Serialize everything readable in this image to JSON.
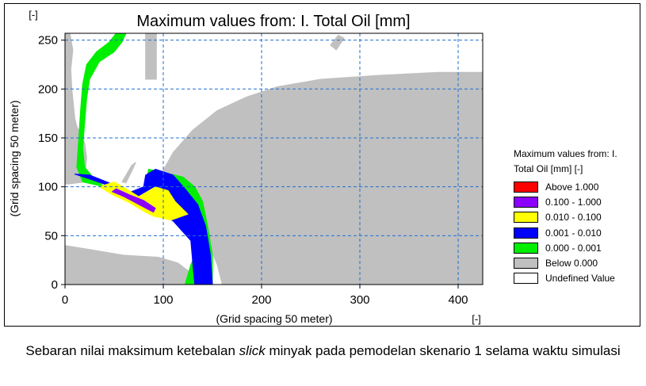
{
  "caption": {
    "before": "Sebaran nilai maksimum ketebalan ",
    "emphasis": "slick",
    "after": " minyak pada pemodelan skenario 1 selama waktu simulasi"
  },
  "chart_data": {
    "type": "heatmap",
    "title": "Maximum values from: I. Total Oil [mm]",
    "xlabel": "(Grid spacing 50 meter)",
    "ylabel": "(Grid spacing 50 meter)",
    "x_unit": "[-]",
    "y_unit": "[-]",
    "xlim": [
      0,
      425
    ],
    "ylim": [
      0,
      257
    ],
    "x_ticks": [
      0,
      100,
      200,
      300,
      400
    ],
    "y_ticks": [
      0,
      50,
      100,
      150,
      200,
      250
    ],
    "grid": true,
    "legend_position": "right",
    "legend": {
      "title_line1": "Maximum values from: I.",
      "title_line2": "Total Oil [mm] [-]",
      "entries": [
        {
          "label": "Above  1.000",
          "color": "#ff0000"
        },
        {
          "label": "0.100 - 1.000",
          "color": "#8b00ff"
        },
        {
          "label": "0.010 - 0.100",
          "color": "#ffff00"
        },
        {
          "label": "0.001 - 0.010",
          "color": "#0000ff"
        },
        {
          "label": "0.000 - 0.001",
          "color": "#00ee00"
        },
        {
          "label": "Below  0.000",
          "color": "#c0c0c0"
        },
        {
          "label": "Undefined Value",
          "color": "#ffffff"
        }
      ]
    },
    "regions": [
      {
        "class": "Below  0.000",
        "color": "#c0c0c0",
        "name": "land-north",
        "points": [
          [
            82,
            257
          ],
          [
            82,
            210
          ],
          [
            93,
            210
          ],
          [
            93,
            257
          ]
        ]
      },
      {
        "class": "Below  0.000",
        "color": "#c0c0c0",
        "name": "land-upper-left",
        "points": [
          [
            10,
            170
          ],
          [
            12,
            162
          ],
          [
            20,
            145
          ],
          [
            22,
            130
          ],
          [
            20,
            105
          ],
          [
            5,
            103
          ],
          [
            0,
            103
          ],
          [
            0,
            257
          ],
          [
            5,
            257
          ],
          [
            8,
            240
          ],
          [
            6,
            220
          ],
          [
            7,
            200
          ]
        ]
      },
      {
        "class": "Below  0.000",
        "color": "#c0c0c0",
        "name": "land-main",
        "points": [
          [
            95,
            108
          ],
          [
            110,
            135
          ],
          [
            130,
            158
          ],
          [
            155,
            178
          ],
          [
            185,
            192
          ],
          [
            215,
            202
          ],
          [
            260,
            210
          ],
          [
            320,
            214
          ],
          [
            380,
            217
          ],
          [
            425,
            217
          ],
          [
            425,
            0
          ],
          [
            160,
            0
          ],
          [
            155,
            20
          ],
          [
            145,
            45
          ],
          [
            140,
            65
          ],
          [
            140,
            85
          ],
          [
            130,
            100
          ],
          [
            108,
            108
          ]
        ]
      },
      {
        "class": "Below  0.000",
        "color": "#c0c0c0",
        "name": "land-lower",
        "points": [
          [
            0,
            40
          ],
          [
            30,
            35
          ],
          [
            60,
            30
          ],
          [
            95,
            28
          ],
          [
            115,
            22
          ],
          [
            128,
            12
          ],
          [
            135,
            0
          ],
          [
            0,
            0
          ]
        ]
      },
      {
        "class": "Below  0.000",
        "color": "#c0c0c0",
        "name": "spit-left",
        "points": [
          [
            58,
            105
          ],
          [
            68,
            122
          ],
          [
            72,
            125
          ],
          [
            68,
            116
          ],
          [
            62,
            104
          ]
        ]
      },
      {
        "class": "Below  0.000",
        "color": "#c0c0c0",
        "name": "island-top",
        "points": [
          [
            270,
            245
          ],
          [
            278,
            255
          ],
          [
            284,
            252
          ],
          [
            276,
            240
          ]
        ]
      },
      {
        "class": "0.000 - 0.001",
        "color": "#00ee00",
        "name": "green-channel-north",
        "points": [
          [
            62,
            257
          ],
          [
            58,
            248
          ],
          [
            50,
            238
          ],
          [
            35,
            228
          ],
          [
            25,
            210
          ],
          [
            22,
            190
          ],
          [
            20,
            165
          ],
          [
            18,
            140
          ],
          [
            20,
            120
          ],
          [
            30,
            108
          ],
          [
            40,
            100
          ],
          [
            18,
            105
          ],
          [
            12,
            120
          ],
          [
            14,
            150
          ],
          [
            16,
            180
          ],
          [
            18,
            205
          ],
          [
            22,
            225
          ],
          [
            32,
            238
          ],
          [
            45,
            248
          ],
          [
            52,
            257
          ]
        ]
      },
      {
        "class": "0.000 - 0.001",
        "color": "#00ee00",
        "name": "green-south",
        "points": [
          [
            85,
            118
          ],
          [
            100,
            115
          ],
          [
            120,
            110
          ],
          [
            132,
            100
          ],
          [
            140,
            85
          ],
          [
            145,
            60
          ],
          [
            150,
            30
          ],
          [
            150,
            0
          ],
          [
            122,
            0
          ],
          [
            128,
            20
          ],
          [
            138,
            45
          ],
          [
            130,
            65
          ],
          [
            112,
            80
          ],
          [
            95,
            90
          ],
          [
            82,
            100
          ]
        ]
      },
      {
        "class": "0.001 - 0.010",
        "color": "#0000ff",
        "name": "blue-main",
        "points": [
          [
            10,
            113
          ],
          [
            25,
            108
          ],
          [
            48,
            100
          ],
          [
            70,
            85
          ],
          [
            90,
            75
          ],
          [
            110,
            65
          ],
          [
            128,
            45
          ],
          [
            130,
            22
          ],
          [
            132,
            0
          ],
          [
            150,
            0
          ],
          [
            148,
            30
          ],
          [
            143,
            60
          ],
          [
            135,
            82
          ],
          [
            122,
            98
          ],
          [
            110,
            112
          ],
          [
            92,
            118
          ],
          [
            82,
            112
          ],
          [
            80,
            100
          ],
          [
            65,
            94
          ],
          [
            45,
            104
          ],
          [
            25,
            112
          ]
        ]
      },
      {
        "class": "0.010 - 0.100",
        "color": "#ffff00",
        "name": "yellow-slick",
        "points": [
          [
            35,
            100
          ],
          [
            50,
            105
          ],
          [
            62,
            98
          ],
          [
            75,
            90
          ],
          [
            92,
            100
          ],
          [
            105,
            96
          ],
          [
            112,
            85
          ],
          [
            125,
            72
          ],
          [
            108,
            66
          ],
          [
            90,
            70
          ],
          [
            80,
            75
          ],
          [
            65,
            84
          ],
          [
            48,
            92
          ]
        ]
      },
      {
        "class": "0.100 - 1.000",
        "color": "#8b00ff",
        "name": "purple-slick",
        "points": [
          [
            48,
            95
          ],
          [
            60,
            90
          ],
          [
            75,
            82
          ],
          [
            90,
            74
          ],
          [
            92,
            78
          ],
          [
            80,
            86
          ],
          [
            65,
            92
          ],
          [
            52,
            98
          ]
        ]
      }
    ]
  }
}
